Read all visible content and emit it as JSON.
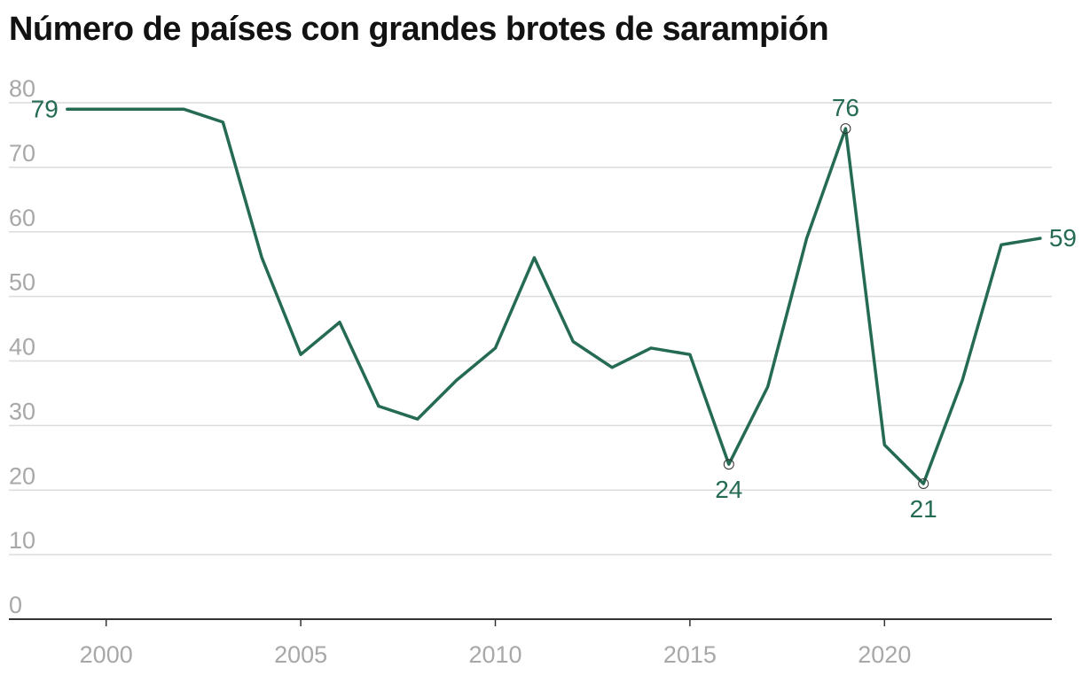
{
  "chart_data": {
    "type": "line",
    "title": "Número de países con grandes brotes de sarampión",
    "xlabel": "",
    "ylabel": "",
    "x": [
      1999,
      2000,
      2001,
      2002,
      2003,
      2004,
      2005,
      2006,
      2007,
      2008,
      2009,
      2010,
      2011,
      2012,
      2013,
      2014,
      2015,
      2016,
      2017,
      2018,
      2019,
      2020,
      2021,
      2022,
      2023,
      2024
    ],
    "series": [
      {
        "values": [
          79,
          79,
          79,
          79,
          77,
          56,
          41,
          46,
          33,
          31,
          37,
          42,
          56,
          43,
          39,
          42,
          41,
          24,
          36,
          59,
          76,
          27,
          21,
          37,
          58,
          59
        ]
      }
    ],
    "xlim": [
      1997.5,
      2024.3
    ],
    "ylim": [
      0,
      80
    ],
    "yticks": [
      "0",
      "10",
      "20",
      "30",
      "40",
      "50",
      "60",
      "70",
      "80"
    ],
    "xticks": [
      "2000",
      "2005",
      "2010",
      "2015",
      "2020"
    ],
    "grid": true,
    "annotations": [
      {
        "x": 1999,
        "y": 79,
        "text": "79",
        "position": "left",
        "marker": false
      },
      {
        "x": 2016,
        "y": 24,
        "text": "24",
        "position": "below",
        "marker": true
      },
      {
        "x": 2019,
        "y": 76,
        "text": "76",
        "position": "above",
        "marker": true
      },
      {
        "x": 2021,
        "y": 21,
        "text": "21",
        "position": "below",
        "marker": true
      },
      {
        "x": 2024,
        "y": 59,
        "text": "59",
        "position": "right",
        "marker": false
      }
    ],
    "colors": {
      "line": "#246b52",
      "grid": "#dcdcdc",
      "axis": "#333333",
      "tick_label": "#a8a8a8"
    }
  }
}
